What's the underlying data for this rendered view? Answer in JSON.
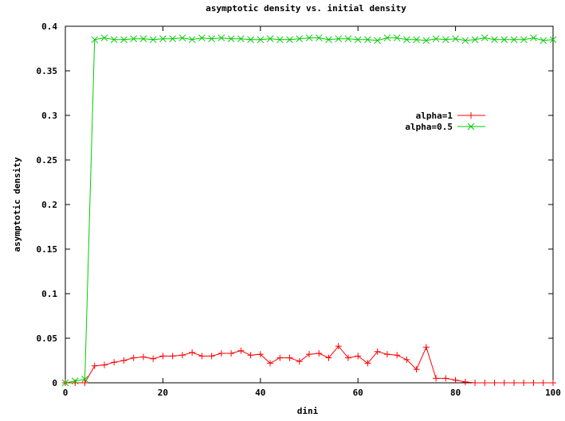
{
  "chart_data": {
    "type": "line",
    "title": "asymptotic density vs. initial density",
    "xlabel": "dini",
    "ylabel": "asymptotic density",
    "xlim": [
      0,
      100
    ],
    "ylim": [
      0,
      0.4
    ],
    "x_ticks": [
      0,
      20,
      40,
      60,
      80,
      100
    ],
    "y_ticks": [
      0,
      0.05,
      0.1,
      0.15,
      0.2,
      0.25,
      0.3,
      0.35,
      0.4
    ],
    "x_tick_labels": [
      "0",
      "20",
      "40",
      "60",
      "80",
      "100"
    ],
    "y_tick_labels": [
      "0",
      "0.05",
      "0.1",
      "0.15",
      "0.2",
      "0.25",
      "0.3",
      "0.35",
      "0.4"
    ],
    "legend_position": "top-right",
    "series": [
      {
        "name": "alpha=1",
        "color": "#ff0000",
        "marker": "plus",
        "x": [
          0,
          2,
          4,
          6,
          8,
          10,
          12,
          14,
          16,
          18,
          20,
          22,
          24,
          26,
          28,
          30,
          32,
          34,
          36,
          38,
          40,
          42,
          44,
          46,
          48,
          50,
          52,
          54,
          56,
          58,
          60,
          62,
          64,
          66,
          68,
          70,
          72,
          74,
          76,
          78,
          80,
          82,
          84,
          86,
          88,
          90,
          92,
          94,
          96,
          98,
          100
        ],
        "y": [
          0,
          0,
          0,
          0.019,
          0.02,
          0.023,
          0.025,
          0.028,
          0.029,
          0.027,
          0.03,
          0.03,
          0.031,
          0.034,
          0.03,
          0.03,
          0.033,
          0.033,
          0.036,
          0.031,
          0.032,
          0.022,
          0.028,
          0.028,
          0.024,
          0.032,
          0.033,
          0.028,
          0.041,
          0.028,
          0.03,
          0.022,
          0.035,
          0.032,
          0.031,
          0.026,
          0.015,
          0.04,
          0.005,
          0.005,
          0.003,
          0.001,
          0,
          0,
          0,
          0,
          0,
          0,
          0,
          0,
          0
        ]
      },
      {
        "name": "alpha=0.5",
        "color": "#00cc00",
        "marker": "cross",
        "x": [
          0,
          2,
          4,
          6,
          8,
          10,
          12,
          14,
          16,
          18,
          20,
          22,
          24,
          26,
          28,
          30,
          32,
          34,
          36,
          38,
          40,
          42,
          44,
          46,
          48,
          50,
          52,
          54,
          56,
          58,
          60,
          62,
          64,
          66,
          68,
          70,
          72,
          74,
          76,
          78,
          80,
          82,
          84,
          86,
          88,
          90,
          92,
          94,
          96,
          98,
          100
        ],
        "y": [
          0,
          0.002,
          0.004,
          0.385,
          0.387,
          0.385,
          0.385,
          0.386,
          0.386,
          0.385,
          0.386,
          0.386,
          0.387,
          0.385,
          0.387,
          0.386,
          0.387,
          0.386,
          0.386,
          0.385,
          0.385,
          0.386,
          0.385,
          0.385,
          0.386,
          0.387,
          0.387,
          0.385,
          0.386,
          0.386,
          0.385,
          0.385,
          0.384,
          0.387,
          0.387,
          0.385,
          0.385,
          0.384,
          0.386,
          0.385,
          0.386,
          0.384,
          0.385,
          0.387,
          0.385,
          0.385,
          0.385,
          0.385,
          0.387,
          0.384,
          0.385
        ]
      }
    ]
  }
}
